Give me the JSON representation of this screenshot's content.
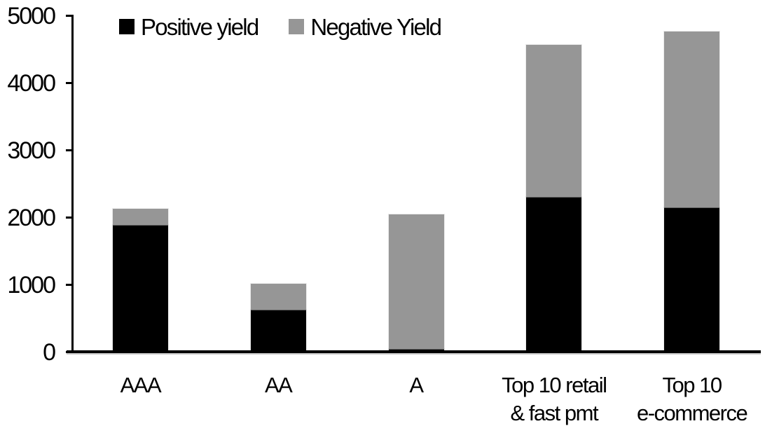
{
  "chart_data": {
    "type": "bar",
    "stacked": true,
    "title": "",
    "xlabel": "",
    "ylabel": "",
    "categories": [
      "AAA",
      "AA",
      "A",
      "Top 10 retail\n& fast pmt",
      "Top 10\ne-commerce"
    ],
    "series": [
      {
        "name": "Positive yield",
        "color": "#000000",
        "values": [
          1890,
          625,
          40,
          2300,
          2150
        ]
      },
      {
        "name": "Negative Yield",
        "color": "#969696",
        "values": [
          240,
          385,
          2000,
          2260,
          2610
        ]
      }
    ],
    "totals": [
      2130,
      1010,
      2040,
      4560,
      4760
    ],
    "ylim": [
      0,
      5000
    ],
    "yticks": [
      0,
      1000,
      2000,
      3000,
      4000,
      5000
    ],
    "grid": "off",
    "legend_position": "top"
  },
  "colors": {
    "axis": "#000000",
    "background": "#ffffff",
    "positive_series": "#000000",
    "negative_series": "#969696"
  }
}
